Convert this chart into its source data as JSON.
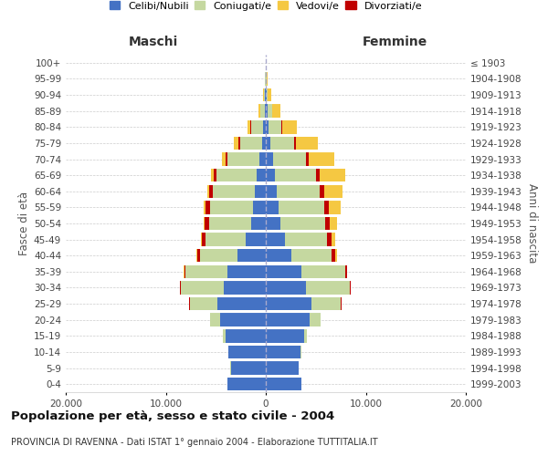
{
  "age_groups": [
    "0-4",
    "5-9",
    "10-14",
    "15-19",
    "20-24",
    "25-29",
    "30-34",
    "35-39",
    "40-44",
    "45-49",
    "50-54",
    "55-59",
    "60-64",
    "65-69",
    "70-74",
    "75-79",
    "80-84",
    "85-89",
    "90-94",
    "95-99",
    "100+"
  ],
  "birth_years": [
    "1999-2003",
    "1994-1998",
    "1989-1993",
    "1984-1988",
    "1979-1983",
    "1974-1978",
    "1969-1973",
    "1964-1968",
    "1959-1963",
    "1954-1958",
    "1949-1953",
    "1944-1948",
    "1939-1943",
    "1934-1938",
    "1929-1933",
    "1924-1928",
    "1919-1923",
    "1914-1918",
    "1909-1913",
    "1904-1908",
    "≤ 1903"
  ],
  "maschi": {
    "celibi": [
      3800,
      3500,
      3700,
      4000,
      4600,
      4800,
      4200,
      3800,
      2800,
      2000,
      1500,
      1300,
      1100,
      900,
      600,
      400,
      250,
      120,
      60,
      30,
      10
    ],
    "coniugati": [
      5,
      20,
      60,
      300,
      1000,
      2800,
      4300,
      4200,
      3800,
      4000,
      4200,
      4300,
      4200,
      4000,
      3200,
      2200,
      1200,
      400,
      120,
      30,
      5
    ],
    "vedovi": [
      0,
      0,
      1,
      2,
      5,
      5,
      15,
      30,
      60,
      100,
      130,
      180,
      200,
      300,
      400,
      500,
      350,
      150,
      50,
      15,
      2
    ],
    "divorziati": [
      0,
      0,
      1,
      2,
      10,
      30,
      80,
      150,
      250,
      350,
      380,
      400,
      350,
      300,
      200,
      100,
      60,
      30,
      15,
      5,
      1
    ]
  },
  "femmine": {
    "nubili": [
      3600,
      3300,
      3500,
      3800,
      4400,
      4600,
      4000,
      3600,
      2600,
      1900,
      1500,
      1300,
      1100,
      950,
      700,
      450,
      280,
      150,
      80,
      30,
      10
    ],
    "coniugate": [
      5,
      20,
      60,
      300,
      1100,
      2900,
      4400,
      4300,
      4000,
      4200,
      4400,
      4500,
      4300,
      4100,
      3300,
      2400,
      1300,
      450,
      130,
      30,
      5
    ],
    "vedove": [
      0,
      0,
      1,
      2,
      5,
      10,
      30,
      60,
      180,
      400,
      700,
      1200,
      1800,
      2500,
      2600,
      2200,
      1500,
      800,
      300,
      80,
      15
    ],
    "divorziate": [
      0,
      0,
      1,
      3,
      15,
      40,
      100,
      200,
      350,
      450,
      480,
      500,
      450,
      380,
      250,
      120,
      60,
      30,
      15,
      5,
      1
    ]
  },
  "colors": {
    "celibi": "#4472c4",
    "coniugati": "#c5d8a0",
    "vedovi": "#f5c842",
    "divorziati": "#c00000"
  },
  "xlim": 20000,
  "title": "Popolazione per età, sesso e stato civile - 2004",
  "subtitle": "PROVINCIA DI RAVENNA - Dati ISTAT 1° gennaio 2004 - Elaborazione TUTTITALIA.IT",
  "ylabel_left": "Fasce di età",
  "ylabel_right": "Anni di nascita",
  "xlabel_left": "Maschi",
  "xlabel_right": "Femmine",
  "background_color": "#ffffff",
  "grid_color": "#cccccc"
}
